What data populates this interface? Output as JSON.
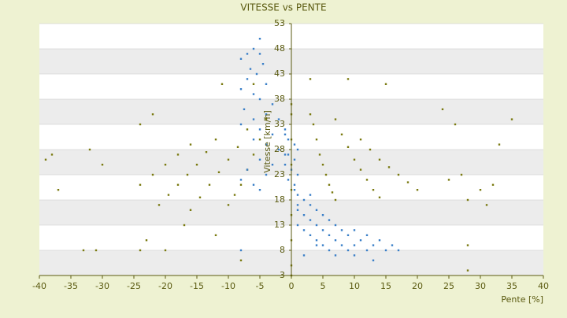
{
  "chart_data": {
    "type": "scatter",
    "title": "VITESSE vs PENTE",
    "x_label": "Pente [%]",
    "y_label": "Vitesse [km/h]",
    "xlim": [
      -40,
      40
    ],
    "xticks": [
      -40,
      -35,
      -30,
      -25,
      -20,
      -15,
      -10,
      -5,
      0,
      5,
      10,
      15,
      20,
      25,
      30,
      35,
      40
    ],
    "ylim": [
      3,
      53
    ],
    "yticks": [
      3,
      8,
      13,
      18,
      23,
      28,
      33,
      38,
      43,
      48,
      53
    ],
    "grid": true,
    "bands": true,
    "series": [
      {
        "color": "#7a7a10",
        "x": [
          3.5,
          4,
          4.5,
          5,
          5.5,
          6,
          6.5,
          7,
          7,
          8,
          9,
          10,
          11,
          12,
          13,
          14,
          11,
          12.5,
          14,
          15.5,
          17,
          18.5,
          20,
          -4,
          -5,
          -6,
          -7,
          -8,
          -9,
          -10,
          -7,
          -8.5,
          -10,
          -11.5,
          -13,
          -14.5,
          -16,
          -12,
          -13.5,
          -15,
          -16.5,
          -18,
          -19.5,
          -21,
          -16,
          -18,
          -20,
          -22,
          -24,
          -39,
          -38,
          -37,
          -32,
          -30,
          -33,
          -31,
          -23,
          -22,
          -24,
          -24,
          -20,
          -17,
          -12,
          -11,
          -6,
          -8,
          9,
          15,
          28,
          28,
          30,
          35,
          33,
          24,
          26,
          0,
          0,
          0,
          0,
          0,
          0,
          0,
          0,
          0,
          3,
          3,
          28,
          31,
          32,
          27,
          25
        ],
        "values": [
          33,
          30,
          27,
          25,
          23,
          21,
          19.5,
          18,
          34,
          31,
          28.5,
          26,
          24,
          22,
          20,
          18.5,
          30,
          28,
          26,
          24.5,
          23,
          21.5,
          20,
          34,
          30,
          27,
          24,
          21,
          19,
          17,
          32,
          28.5,
          26,
          23.5,
          21,
          18.5,
          16,
          30,
          27.5,
          25,
          23,
          21,
          19,
          17,
          29,
          27,
          25,
          23,
          21,
          26,
          27,
          20,
          28,
          25,
          8,
          8,
          10,
          35,
          33,
          8,
          8,
          13,
          11,
          41,
          41,
          6,
          42,
          41,
          9,
          4,
          20,
          34,
          29,
          36,
          33,
          3,
          10,
          20,
          30,
          37,
          5,
          15,
          25,
          35,
          42,
          35,
          18,
          17,
          21,
          23,
          22
        ]
      },
      {
        "color": "#3a7fc8",
        "x": [
          -5,
          -6,
          -7,
          -8,
          -5,
          -4.5,
          -6.5,
          -5.5,
          -7,
          -4,
          -8,
          -6,
          -5,
          -3,
          -7.5,
          -4,
          -6,
          -2,
          -8,
          -5,
          -3,
          -1,
          -6,
          -4,
          -2,
          -1,
          -5,
          -3,
          -7,
          -4,
          -8,
          -6,
          -5,
          -8,
          -1,
          -0.5,
          0.5,
          1,
          -0.5,
          0.5,
          -1,
          0,
          1,
          -0.5,
          0.5,
          0.5,
          1,
          2,
          3,
          1,
          4,
          2,
          5,
          3,
          6,
          1,
          4,
          7,
          2,
          5,
          8,
          10,
          3,
          6,
          9,
          12,
          4,
          7,
          11,
          14,
          5,
          8,
          10,
          13,
          16,
          6,
          9,
          12,
          15,
          17,
          7,
          10,
          13,
          2,
          4,
          3,
          1
        ],
        "values": [
          50,
          48,
          47,
          46,
          47,
          45,
          44,
          43,
          42,
          41,
          40,
          39,
          38,
          37,
          36,
          35,
          34,
          34,
          33,
          32,
          31,
          31,
          30,
          29,
          28,
          27,
          26,
          25,
          24,
          23,
          22,
          21,
          20,
          8,
          32,
          30,
          29,
          28,
          27,
          26,
          25,
          24,
          23,
          22,
          21,
          20,
          19,
          18,
          17,
          16,
          16,
          15,
          15,
          14,
          14,
          13,
          13,
          13,
          12,
          12,
          12,
          12,
          11,
          11,
          11,
          11,
          10,
          10,
          10,
          10,
          9,
          9,
          9,
          9,
          9,
          8,
          8,
          8,
          8,
          8,
          7,
          7,
          6,
          7,
          9,
          19,
          17
        ]
      }
    ]
  }
}
